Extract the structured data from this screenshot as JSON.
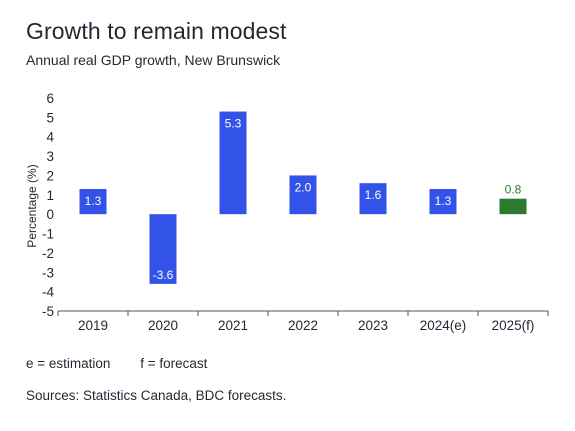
{
  "title": "Growth to remain modest",
  "subtitle": "Annual real GDP growth, New Brunswick",
  "notes": {
    "estimation": "e = estimation",
    "forecast": "f = forecast"
  },
  "source": "Sources: Statistics Canada, BDC forecasts.",
  "colors": {
    "actual": "#3352e8",
    "forecast": "#2b7a2f",
    "axis": "#555555",
    "text": "#1f2933"
  },
  "chart_data": {
    "type": "bar",
    "title": "Growth to remain modest",
    "subtitle": "Annual real GDP growth, New Brunswick",
    "xlabel": "",
    "ylabel": "Percentage (%)",
    "categories": [
      "2019",
      "2020",
      "2021",
      "2022",
      "2023",
      "2024(e)",
      "2025(f)"
    ],
    "values": [
      1.3,
      -3.6,
      5.3,
      2.0,
      1.6,
      1.3,
      0.8
    ],
    "data_labels": [
      "1.3",
      "-3.6",
      "5.3",
      "2.0",
      "1.6",
      "1.3",
      "0.8"
    ],
    "bar_kind": [
      "actual",
      "actual",
      "actual",
      "actual",
      "actual",
      "actual",
      "forecast"
    ],
    "ylim": [
      -5,
      6
    ],
    "yticks": [
      6,
      5,
      4,
      3,
      2,
      1,
      0,
      -1,
      -2,
      -3,
      -4,
      -5
    ],
    "grid": false,
    "legend": "none"
  }
}
